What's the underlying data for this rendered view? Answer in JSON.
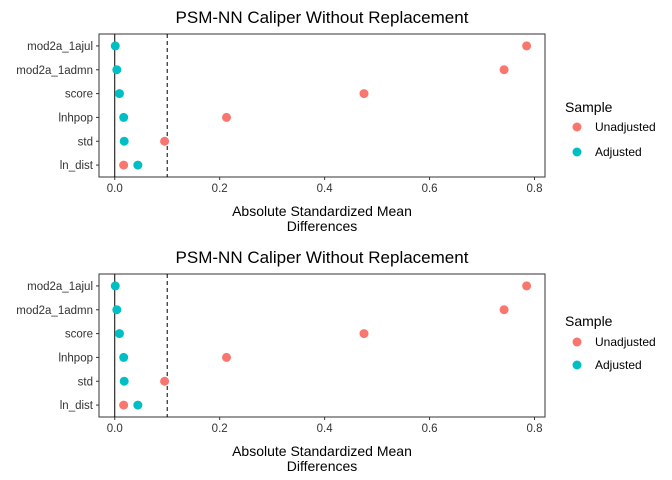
{
  "chart_data": [
    {
      "type": "scatter",
      "title": "PSM-NN Caliper Without Replacement",
      "xlabel_lines": [
        "Absolute Standardized Mean",
        "Differences"
      ],
      "ylabel": "",
      "xlim": [
        -0.03,
        0.82
      ],
      "x_ticks": [
        "0.0",
        "0.2",
        "0.4",
        "0.6",
        "0.8"
      ],
      "x_tick_values": [
        0.0,
        0.2,
        0.4,
        0.6,
        0.8
      ],
      "threshold": 0.1,
      "categories": [
        "mod2a_1ajul",
        "mod2a_1admn",
        "score",
        "lnhpop",
        "std",
        "ln_dist"
      ],
      "grid": false,
      "legend_placement": "right",
      "legend_title": "Sample",
      "series": [
        {
          "name": "Unadjusted",
          "color": "#F8766D",
          "values": [
            0.785,
            0.742,
            0.475,
            0.213,
            0.095,
            0.017
          ]
        },
        {
          "name": "Adjusted",
          "color": "#00BFC4",
          "values": [
            0.001,
            0.004,
            0.009,
            0.017,
            0.018,
            0.044
          ]
        }
      ]
    },
    {
      "type": "scatter",
      "title": "PSM-NN Caliper Without Replacement",
      "xlabel_lines": [
        "Absolute Standardized Mean",
        "Differences"
      ],
      "ylabel": "",
      "xlim": [
        -0.03,
        0.82
      ],
      "x_ticks": [
        "0.0",
        "0.2",
        "0.4",
        "0.6",
        "0.8"
      ],
      "x_tick_values": [
        0.0,
        0.2,
        0.4,
        0.6,
        0.8
      ],
      "threshold": 0.1,
      "categories": [
        "mod2a_1ajul",
        "mod2a_1admn",
        "score",
        "lnhpop",
        "std",
        "ln_dist"
      ],
      "grid": false,
      "legend_placement": "right",
      "legend_title": "Sample",
      "series": [
        {
          "name": "Unadjusted",
          "color": "#F8766D",
          "values": [
            0.785,
            0.742,
            0.475,
            0.213,
            0.095,
            0.017
          ]
        },
        {
          "name": "Adjusted",
          "color": "#00BFC4",
          "values": [
            0.001,
            0.004,
            0.009,
            0.017,
            0.018,
            0.044
          ]
        }
      ]
    }
  ]
}
